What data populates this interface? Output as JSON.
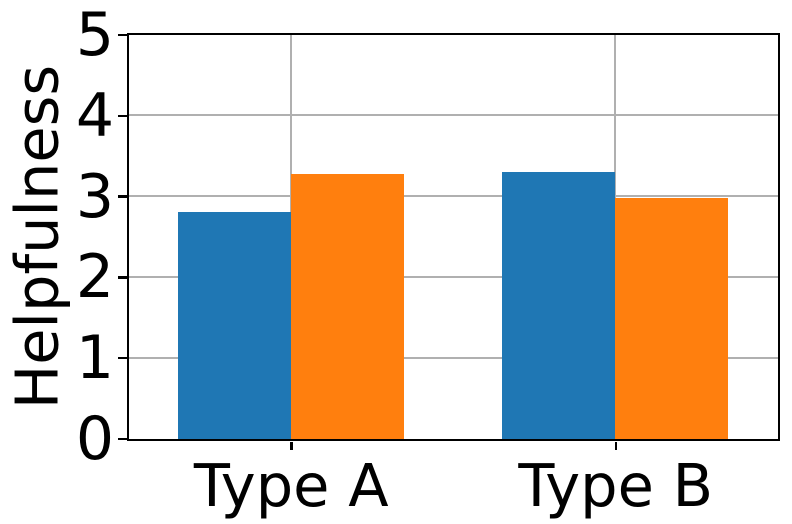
{
  "chart_data": {
    "type": "bar",
    "title": "",
    "xlabel": "",
    "ylabel": "Helpfulness",
    "categories": [
      "Type A",
      "Type B"
    ],
    "series": [
      {
        "name": "blue",
        "color": "#1f77b4",
        "values": [
          2.8,
          3.3
        ]
      },
      {
        "name": "orange",
        "color": "#ff7f0e",
        "values": [
          3.27,
          2.98
        ]
      }
    ],
    "ylim": [
      0,
      5
    ],
    "yticks": [
      0,
      1,
      2,
      3,
      4,
      5
    ],
    "grid": true,
    "legend_position": "none",
    "colors": {
      "grid": "#b0b0b0",
      "spine": "#000000",
      "background": "#ffffff",
      "text": "#000000"
    }
  }
}
